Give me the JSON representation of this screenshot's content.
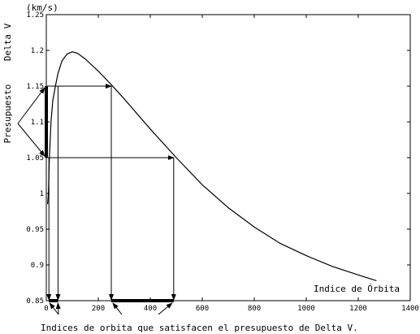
{
  "chart_data": {
    "type": "line",
    "title": "",
    "ylabel": "Delta V",
    "yunit": "(km/s)",
    "xlabel": "Indice de Órbita",
    "budget_label": "Presupuesto",
    "caption": "Indices de orbita que satisfacen el presupuesto de Delta V.",
    "xlim": [
      0,
      1400
    ],
    "ylim": [
      0.85,
      1.25
    ],
    "x_ticks": [
      0,
      200,
      400,
      600,
      800,
      1000,
      1200,
      1400
    ],
    "y_ticks": [
      0.85,
      0.9,
      0.95,
      1,
      1.05,
      1.1,
      1.15,
      1.2,
      1.25
    ],
    "x_tick_labels": [
      "0",
      "200",
      "400",
      "600",
      "800",
      "1000",
      "1200",
      "1400"
    ],
    "y_tick_labels": [
      "0.85",
      "0.9",
      "0.95",
      "1",
      "1.05",
      "1.1",
      "1.15",
      "1.2",
      "1.25"
    ],
    "grid": false,
    "budget_range": [
      1.05,
      1.15
    ],
    "satisfying_x_ranges": [
      [
        10,
        45
      ],
      [
        250,
        490
      ]
    ],
    "series": [
      {
        "x": [
          5,
          8,
          12,
          18,
          25,
          35,
          45,
          60,
          80,
          100,
          120,
          150,
          200,
          250,
          300,
          400,
          500,
          600,
          700,
          800,
          900,
          1000,
          1100,
          1200,
          1270
        ],
        "values": [
          0.985,
          1.0,
          1.05,
          1.1,
          1.13,
          1.15,
          1.168,
          1.185,
          1.195,
          1.198,
          1.196,
          1.188,
          1.171,
          1.152,
          1.132,
          1.09,
          1.05,
          1.012,
          0.98,
          0.953,
          0.93,
          0.913,
          0.898,
          0.886,
          0.878
        ]
      }
    ]
  }
}
